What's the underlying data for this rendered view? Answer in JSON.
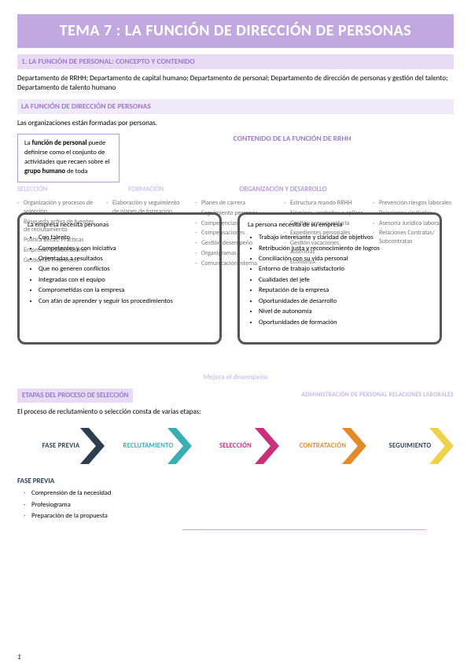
{
  "title": "TEMA 7 : LA FUNCIÓN DE DIRECCIÓN DE PERSONAS",
  "s1": {
    "heading": "1. LA FUNCIÓN DE PERSONAL: CONCEPTO Y CONTENIDO",
    "intro": "Departamento de RRHH; Departamento de capital humano; Departamento de personal; Departamento de dirección de personas y gestión del talento; Departamento de talento humano"
  },
  "s2": {
    "heading": "LA FUNCIÓN DE DIRECCIÓN DE PERSONAS",
    "intro": "Las organizaciones están formadas por personas."
  },
  "defbox": "La <b>función de personal</b> puede definirse como el conjunto de actividades que recaen sobre el <b>grupo humano</b> de toda",
  "content_header": "CONTENIDO DE LA FUNCIÓN DE RRHH",
  "cols": {
    "a": "SELECCIÓN",
    "b": "FORMACIÓN",
    "c": "ORGANIZACIÓN Y DESARROLLO",
    "d": ""
  },
  "ghost": {
    "a": [
      "Organización y procesos de selección",
      "Búsqueda activa de fuentes de reclutamiento",
      "Política Becas, Prácticas",
      "Empresas Colaboradoras",
      "Gestión ETT, servicios"
    ],
    "b": [
      "Elaboración y seguimiento de planes de formación",
      "",
      ""
    ],
    "c": [
      "Planes de carrera",
      "Seguimiento personas",
      "Competencias",
      "Compensaciones",
      "Gestión desempeño",
      "Organigramas",
      "Comunicación interna"
    ],
    "d": [
      "Estructura mando RRHH",
      "Nóminas, contratos a aplicar",
      "Gestión presupuestaria",
      "Expedientes personales",
      "Gestión vacaciones, ausencias",
      "Economía"
    ],
    "e": [
      "Prevención riesgos laborales",
      "Relaciones sindicales",
      "Asesoría Jurídico laboral",
      "Relaciones Contratas/ Subcontratas"
    ]
  },
  "boxL": {
    "hdr": "La empresa necesita personas",
    "items": [
      "Con talento",
      "Competentes y con iniciativa",
      "Orientadas a resultados",
      "Que no generen conflictos",
      "Integradas con el equipo",
      "Comprometidas con la empresa",
      "Con afán de aprender y seguir los procedimientos"
    ]
  },
  "boxR": {
    "hdr": "La persona necesita de su empresa",
    "items": [
      "Trabajo interesante y claridad de objetivos",
      "Retribución justa y reconocimiento de logros",
      "Conciliación con su vida personal",
      "Entorno de trabajo satisfactorio",
      "Cualidades del jefe",
      "Reputación de la empresa",
      "Oportunidades de desarrollo",
      "Nivel de autonomía",
      "Oportunidades de formación"
    ]
  },
  "mejora": "Mejora el desempeño",
  "etapas": {
    "heading": "ETAPAS DEL PROCESO DE SELECCIÓN",
    "right": "ADMINISTRACIÓN DE PERSONAL    RELACIONES LABORALES",
    "intro": "El proceso de reclutamiento o selección consta de varias etapas:"
  },
  "chev": {
    "a": "FASE PREVIA",
    "b": "RECLUTAMIENTO",
    "c": "SELECCIÓN",
    "d": "CONTRATACIÓN",
    "e": "SEGUIMIENTO"
  },
  "fase": {
    "heading": "FASE PREVIA",
    "items": [
      "Comprensión de la necesidad",
      "Profesiograma",
      "Preparación de la propuesta"
    ]
  },
  "pagenum": "1",
  "colors": {
    "purple": "#c1a9e0",
    "lav": "#e7dbf3",
    "navy": "#2d3f4f",
    "teal": "#3aaeb3",
    "mag": "#c8317a",
    "orange": "#e38b2a",
    "yellow": "#f0d24a"
  }
}
